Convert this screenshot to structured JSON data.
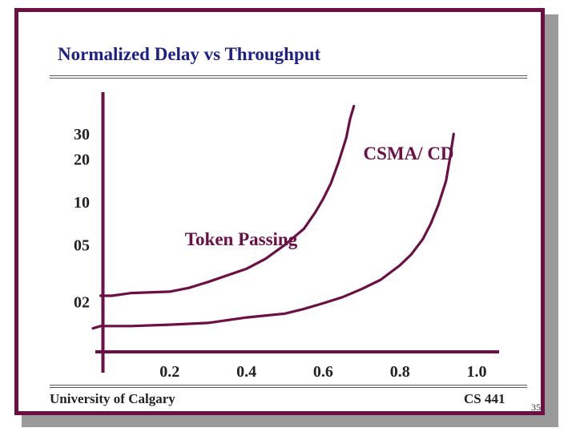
{
  "slide": {
    "title": "Normalized Delay vs Throughput",
    "footer_left": "University of Calgary",
    "footer_right": "CS 441",
    "page_number": "35",
    "colors": {
      "frame": "#6b0f45",
      "title": "#1f1f8a",
      "curve": "#6b0f45",
      "text": "#222222"
    }
  },
  "chart_data": {
    "type": "line",
    "title": "Normalized Delay vs Throughput",
    "xlabel": "",
    "ylabel": "",
    "xlim": [
      0,
      1.05
    ],
    "x_ticks": [
      "0.2",
      "0.4",
      "0.6",
      "0.8",
      "1.0"
    ],
    "y_ticks": [
      "02",
      "05",
      "10",
      "20",
      "30"
    ],
    "y_scale": "log",
    "grid": false,
    "series": [
      {
        "name": "Token Passing",
        "x": [
          0.02,
          0.05,
          0.1,
          0.2,
          0.25,
          0.3,
          0.4,
          0.45,
          0.5,
          0.55,
          0.58,
          0.6,
          0.62,
          0.64,
          0.66,
          0.67,
          0.68
        ],
        "y": [
          2.2,
          2.2,
          2.3,
          2.35,
          2.5,
          2.75,
          3.4,
          4.0,
          5.0,
          6.5,
          8.5,
          10.5,
          13.5,
          19,
          28,
          38,
          47
        ]
      },
      {
        "name": "CSMA/ CD",
        "x": [
          0.0,
          0.02,
          0.1,
          0.2,
          0.3,
          0.4,
          0.5,
          0.55,
          0.6,
          0.65,
          0.7,
          0.75,
          0.8,
          0.83,
          0.86,
          0.88,
          0.9,
          0.92,
          0.93,
          0.94
        ],
        "y": [
          1.3,
          1.35,
          1.35,
          1.38,
          1.42,
          1.55,
          1.65,
          1.78,
          1.95,
          2.15,
          2.45,
          2.85,
          3.6,
          4.3,
          5.5,
          7.0,
          9.5,
          14,
          20,
          30
        ]
      }
    ]
  }
}
